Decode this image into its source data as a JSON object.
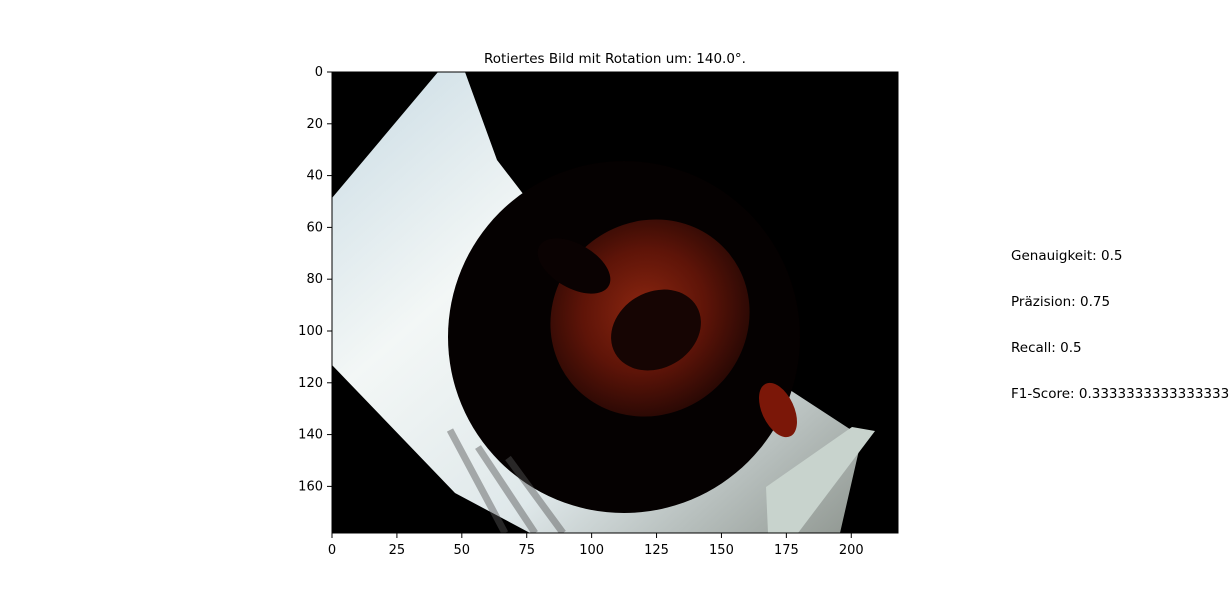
{
  "chart_data": {
    "type": "image",
    "title": "Rotiertes Bild mit Rotation um: 140.0°.",
    "rotation_degrees": 140.0,
    "xlim": [
      0,
      218
    ],
    "ylim": [
      178,
      0
    ],
    "x_ticks": [
      0,
      25,
      50,
      75,
      100,
      125,
      150,
      175,
      200
    ],
    "y_ticks": [
      0,
      20,
      40,
      60,
      80,
      100,
      120,
      140,
      160
    ],
    "image_content": "rotated photo of a face on a black background with a light blue-white rotated band",
    "colors": {
      "background": "#000000",
      "band": "#d8e6ea",
      "skin": "#7a1e0b",
      "shadow": "#140504"
    }
  },
  "metrics": {
    "accuracy": "Genauigkeit: 0.5",
    "precision": "Präzision: 0.75",
    "recall": "Recall: 0.5",
    "f1": "F1-Score: 0.3333333333333333"
  }
}
